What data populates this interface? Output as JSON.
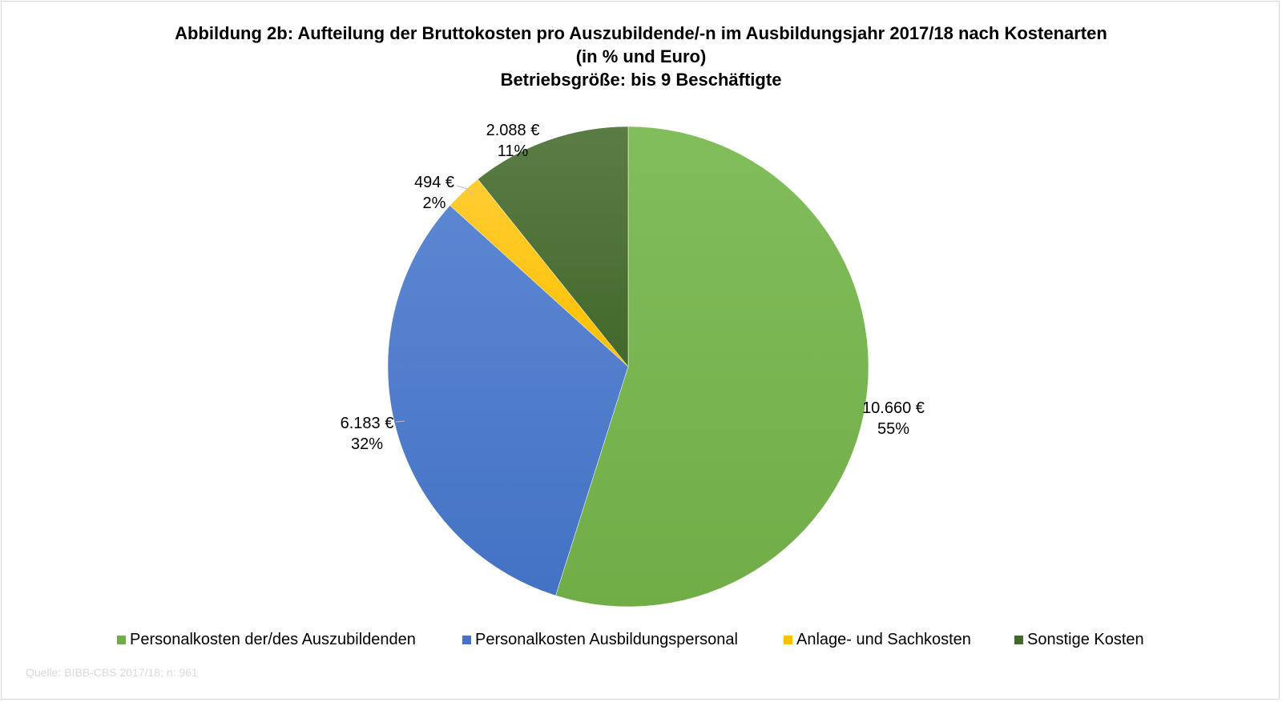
{
  "title": {
    "line1": "Abbildung 2b: Aufteilung der Bruttokosten pro Auszubildende/-n im Ausbildungsjahr 2017/18 nach Kostenarten",
    "line2": "(in % und Euro)",
    "line3": "Betriebsgröße: bis 9 Beschäftigte"
  },
  "source": "Quelle: BIBB-CBS 2017/18; n: 961",
  "chart_data": {
    "type": "pie",
    "start_angle_deg": 0,
    "direction": "clockwise",
    "slices": [
      {
        "name": "Personalkosten der/des Auszubildenden",
        "value": 10660,
        "value_label": "10.660 €",
        "percent_label": "55%",
        "color": "#70ad47",
        "color_light": "#82bd5c"
      },
      {
        "name": "Personalkosten Ausbildungspersonal",
        "value": 6183,
        "value_label": "6.183 €",
        "percent_label": "32%",
        "color": "#4472c4",
        "color_light": "#5b86d2"
      },
      {
        "name": "Anlage- und Sachkosten",
        "value": 494,
        "value_label": "494 €",
        "percent_label": "2%",
        "color": "#ffc000",
        "color_light": "#ffcd33"
      },
      {
        "name": "Sonstige Kosten",
        "value": 2088,
        "value_label": "2.088 €",
        "percent_label": "11%",
        "color": "#43682b",
        "color_light": "#5a7d45"
      }
    ],
    "legend_position": "bottom"
  }
}
